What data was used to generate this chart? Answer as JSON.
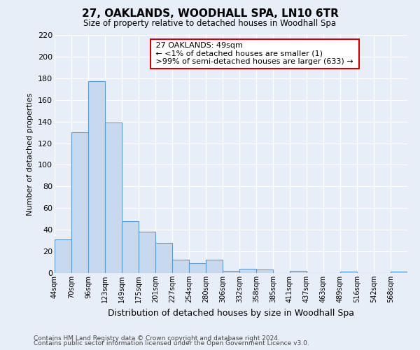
{
  "title": "27, OAKLANDS, WOODHALL SPA, LN10 6TR",
  "subtitle": "Size of property relative to detached houses in Woodhall Spa",
  "xlabel": "Distribution of detached houses by size in Woodhall Spa",
  "ylabel": "Number of detached properties",
  "bar_labels": [
    "44sqm",
    "70sqm",
    "96sqm",
    "123sqm",
    "149sqm",
    "175sqm",
    "201sqm",
    "227sqm",
    "254sqm",
    "280sqm",
    "306sqm",
    "332sqm",
    "358sqm",
    "385sqm",
    "411sqm",
    "437sqm",
    "463sqm",
    "489sqm",
    "516sqm",
    "542sqm",
    "568sqm"
  ],
  "bar_values": [
    31,
    130,
    177,
    139,
    48,
    38,
    28,
    12,
    9,
    12,
    2,
    4,
    3,
    0,
    2,
    0,
    0,
    1,
    0,
    0,
    1
  ],
  "bar_color": "#c6d9f0",
  "bar_edge_color": "#5b9bd5",
  "annotation_title": "27 OAKLANDS: 49sqm",
  "annotation_line1": "← <1% of detached houses are smaller (1)",
  "annotation_line2": ">99% of semi-detached houses are larger (633) →",
  "annotation_box_color": "#ffffff",
  "annotation_box_edge_color": "#cc0000",
  "ylim": [
    0,
    220
  ],
  "yticks": [
    0,
    20,
    40,
    60,
    80,
    100,
    120,
    140,
    160,
    180,
    200,
    220
  ],
  "footer1": "Contains HM Land Registry data © Crown copyright and database right 2024.",
  "footer2": "Contains public sector information licensed under the Open Government Licence v3.0.",
  "bg_color": "#e8eef8",
  "plot_bg_color": "#e8eef8",
  "grid_color": "#ffffff",
  "bin_width": 26
}
